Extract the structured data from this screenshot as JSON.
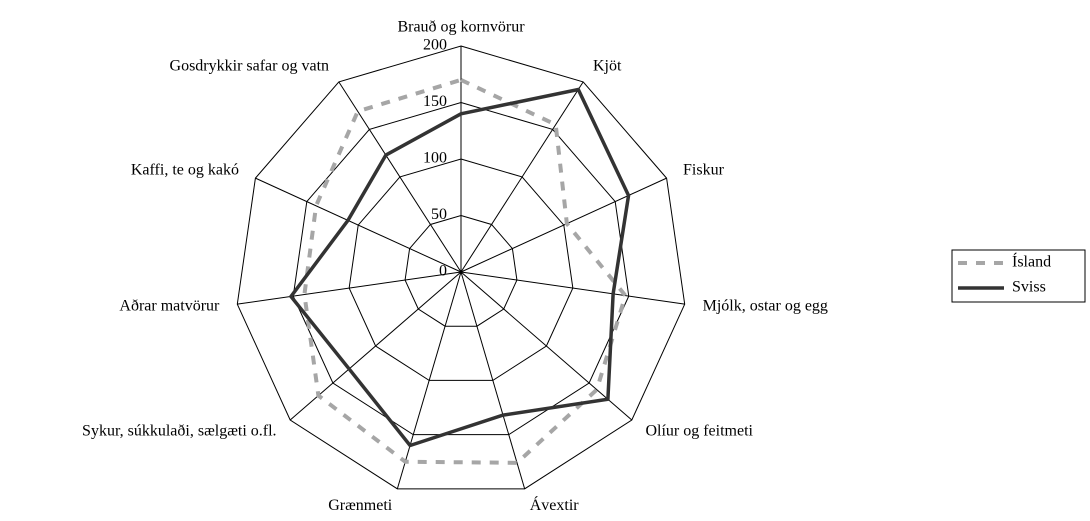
{
  "chart_data": {
    "type": "radar",
    "categories": [
      "Brauð og kornvörur",
      "Kjöt",
      "Fiskur",
      "Mjólk, ostar og egg",
      "Olíur og feitmeti",
      "Ávextir",
      "Grænmeti",
      "Sykur, súkkulaði, sælgæti o.fl.",
      "Aðrar matvörur",
      "Kaffi, te og kakó",
      "Gosdrykkir safar og vatn"
    ],
    "series": [
      {
        "name": "Ísland",
        "color": "#a6a6a6",
        "dash": true,
        "values": [
          170,
          155,
          103,
          147,
          159,
          176,
          175,
          167,
          140,
          141,
          169
        ]
      },
      {
        "name": "Sviss",
        "color": "#333333",
        "dash": false,
        "values": [
          140,
          192,
          163,
          136,
          172,
          132,
          160,
          131,
          152,
          110,
          123
        ]
      }
    ],
    "rlim": [
      0,
      200
    ],
    "rticks": [
      0,
      50,
      100,
      150,
      200
    ],
    "grid": true,
    "legend": "right"
  }
}
